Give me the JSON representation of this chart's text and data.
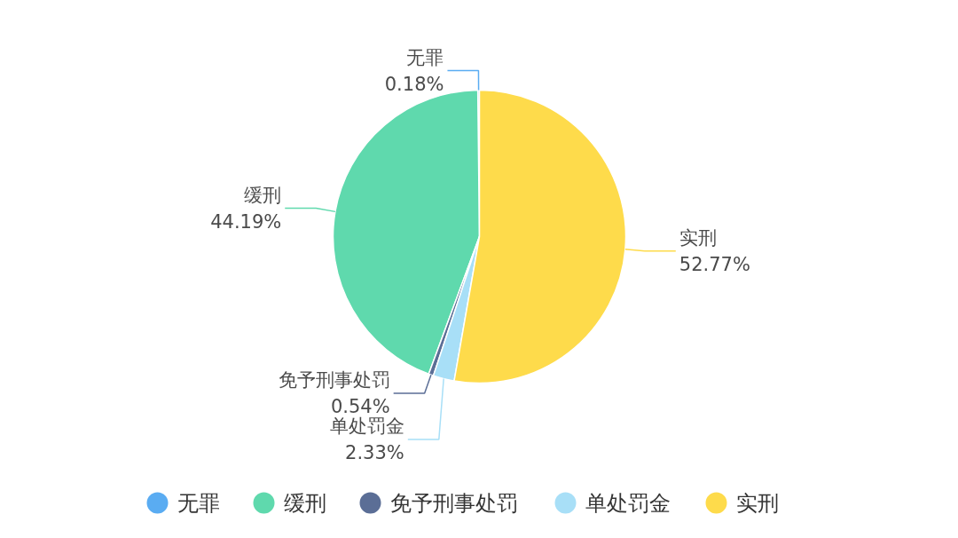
{
  "chart_data": {
    "type": "pie",
    "categories": [
      "无罪",
      "缓刑",
      "免予刑事处罚",
      "单处罚金",
      "实刑"
    ],
    "values": [
      0.18,
      44.19,
      0.54,
      2.33,
      52.77
    ],
    "colors": [
      "#5aacf2",
      "#5fd9ad",
      "#5b6e96",
      "#a8dff7",
      "#fedb4b"
    ],
    "value_labels": [
      "0.18%",
      "44.19%",
      "0.54%",
      "2.33%",
      "52.77%"
    ],
    "legend": "bottom"
  }
}
